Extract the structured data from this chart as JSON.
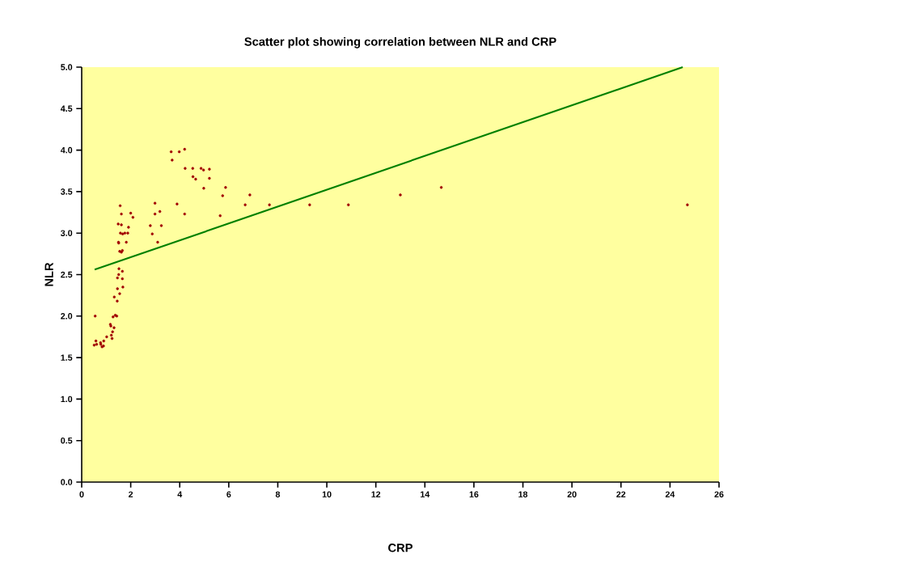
{
  "chart_data": {
    "type": "scatter",
    "title": "Scatter plot showing correlation between NLR and CRP",
    "xlabel": "CRP",
    "ylabel": "NLR",
    "xlim": [
      0,
      26
    ],
    "xticks": [
      0,
      2,
      4,
      6,
      8,
      10,
      12,
      14,
      16,
      18,
      20,
      22,
      24,
      26
    ],
    "ylim": [
      0,
      5
    ],
    "yticks": [
      {
        "value": 0,
        "label": "0.0"
      },
      {
        "value": 0.5,
        "label": "0.5"
      },
      {
        "value": 1,
        "label": "1.0"
      },
      {
        "value": 1.5,
        "label": "1.5"
      },
      {
        "value": 2,
        "label": "2.0"
      },
      {
        "value": 2.5,
        "label": "2.5"
      },
      {
        "value": 3,
        "label": "3.0"
      },
      {
        "value": 3.5,
        "label": "3.5"
      },
      {
        "value": 4,
        "label": "4.0"
      },
      {
        "value": 4.5,
        "label": "4.5"
      },
      {
        "value": 5,
        "label": "5.0"
      }
    ],
    "series": [
      {
        "marker": "circle",
        "color": "#a00000",
        "x": [
          3.65,
          3.98,
          4.2,
          3.69,
          4.22,
          4.53,
          4.87,
          4.97,
          5.21,
          4.54,
          4.65,
          5.21,
          4.98,
          5.87,
          5.75,
          5.65,
          1.57,
          1.62,
          2.0,
          2.09,
          2.99,
          2.99,
          3.19,
          3.89,
          4.2,
          1.49,
          1.62,
          1.91,
          2.8,
          3.25,
          1.58,
          1.67,
          1.76,
          1.88,
          2.88,
          1.5,
          1.51,
          1.82,
          3.1,
          1.55,
          1.62,
          1.66,
          1.52,
          1.66,
          1.51,
          1.46,
          1.66,
          1.46,
          1.68,
          1.55,
          1.33,
          1.45,
          0.55,
          1.37,
          1.43,
          1.28,
          1.17,
          1.19,
          1.32,
          1.26,
          1.21,
          1.02,
          1.24,
          0.9,
          0.58,
          0.51,
          0.61,
          0.77,
          0.78,
          0.83,
          0.89,
          6.86,
          6.67,
          7.66,
          9.3,
          10.88,
          13.0,
          14.67,
          24.71
        ],
        "values": [
          3.98,
          3.98,
          4.01,
          3.88,
          3.78,
          3.78,
          3.78,
          3.76,
          3.77,
          3.68,
          3.65,
          3.66,
          3.54,
          3.55,
          3.45,
          3.21,
          3.33,
          3.23,
          3.24,
          3.19,
          3.36,
          3.23,
          3.26,
          3.35,
          3.23,
          3.11,
          3.1,
          3.07,
          3.09,
          3.09,
          3.0,
          2.99,
          3.0,
          3.0,
          2.99,
          2.89,
          2.88,
          2.89,
          2.89,
          2.78,
          2.77,
          2.79,
          2.57,
          2.54,
          2.5,
          2.46,
          2.45,
          2.33,
          2.35,
          2.27,
          2.23,
          2.18,
          2.0,
          2.01,
          2.0,
          1.99,
          1.9,
          1.88,
          1.86,
          1.81,
          1.77,
          1.75,
          1.73,
          1.7,
          1.7,
          1.65,
          1.66,
          1.68,
          1.66,
          1.63,
          1.64,
          3.46,
          3.34,
          3.34,
          3.34,
          3.34,
          3.46,
          3.55,
          3.34
        ]
      },
      {
        "type": "line",
        "marker": "none",
        "line_style": "solid",
        "color": "#008000",
        "x": [
          0.53,
          24.52
        ],
        "values": [
          2.56,
          5.0
        ]
      }
    ]
  }
}
